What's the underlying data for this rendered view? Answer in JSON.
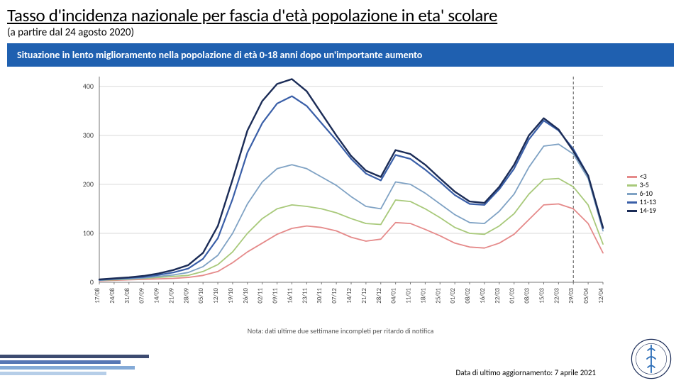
{
  "header": {
    "title": "Tasso d'incidenza nazionale per fascia d'età popolazione in eta' scolare",
    "subtitle": "(a partire dal 24 agosto 2020)",
    "banner": "Situazione in lento miglioramento nella popolazione di età 0-18 anni dopo un'importante aumento"
  },
  "chart": {
    "type": "line",
    "background_color": "#ffffff",
    "grid_color": "#d9d9d9",
    "axis_color": "#777777",
    "xlabels": [
      "17/08",
      "24/08",
      "31/08",
      "07/09",
      "14/09",
      "21/09",
      "28/09",
      "05/10",
      "12/10",
      "19/10",
      "26/10",
      "02/11",
      "09/11",
      "16/11",
      "23/11",
      "30/11",
      "07/12",
      "14/12",
      "21/12",
      "28/12",
      "04/01",
      "11/01",
      "18/01",
      "25/01",
      "01/02",
      "08/02",
      "16/02",
      "22/03",
      "01/03",
      "08/03",
      "15/03",
      "22/03",
      "29/03",
      "05/04",
      "12/04"
    ],
    "x_note": "Nota: dati ultime due settimane incompleti per ritardo di notifica",
    "ylim": [
      0,
      420
    ],
    "yticks": [
      0,
      100,
      200,
      300,
      400
    ],
    "dashed_x_index": 32,
    "series": [
      {
        "name": "<3",
        "color": "#e58a8a",
        "width": 1.8,
        "values": [
          3,
          4,
          5,
          6,
          7,
          8,
          10,
          14,
          22,
          40,
          62,
          80,
          98,
          110,
          115,
          112,
          105,
          92,
          84,
          88,
          122,
          120,
          108,
          95,
          80,
          72,
          70,
          80,
          98,
          128,
          158,
          160,
          150,
          120,
          60
        ]
      },
      {
        "name": "3-5",
        "color": "#a8c97a",
        "width": 1.8,
        "values": [
          4,
          5,
          6,
          8,
          10,
          12,
          14,
          22,
          36,
          62,
          100,
          130,
          150,
          158,
          155,
          150,
          142,
          130,
          120,
          118,
          168,
          165,
          150,
          132,
          112,
          100,
          98,
          115,
          140,
          180,
          210,
          212,
          195,
          158,
          78
        ]
      },
      {
        "name": "6-10",
        "color": "#7fa2c4",
        "width": 1.8,
        "values": [
          4,
          6,
          7,
          9,
          12,
          15,
          20,
          32,
          55,
          100,
          160,
          205,
          232,
          240,
          232,
          215,
          198,
          175,
          155,
          150,
          205,
          200,
          182,
          160,
          138,
          122,
          120,
          145,
          180,
          235,
          278,
          282,
          262,
          212,
          105
        ]
      },
      {
        "name": "11-13",
        "color": "#3a5fa8",
        "width": 2.2,
        "values": [
          5,
          7,
          9,
          11,
          15,
          20,
          28,
          48,
          90,
          170,
          265,
          325,
          365,
          380,
          360,
          325,
          290,
          252,
          222,
          208,
          260,
          252,
          230,
          205,
          178,
          160,
          158,
          190,
          232,
          292,
          330,
          310,
          272,
          218,
          110
        ]
      },
      {
        "name": "14-19",
        "color": "#1b2c57",
        "width": 2.4,
        "values": [
          6,
          8,
          10,
          13,
          18,
          25,
          35,
          60,
          115,
          210,
          310,
          370,
          405,
          415,
          390,
          345,
          300,
          258,
          228,
          215,
          270,
          262,
          240,
          212,
          185,
          165,
          162,
          195,
          240,
          300,
          335,
          312,
          268,
          218,
          112
        ]
      }
    ]
  },
  "footer": {
    "date_label": "Data di ultimo aggiornamento: 7 aprile 2021"
  },
  "logo": {
    "outer_text": "ISTITUTO SUPERIORE DI SANITÀ",
    "ring_color": "#1b2c57",
    "glyph_color": "#2e6fb8"
  },
  "decor": {
    "colors": [
      "#1b2c57",
      "#3a5fa8",
      "#6f9bd0",
      "#a9c6e4"
    ]
  }
}
